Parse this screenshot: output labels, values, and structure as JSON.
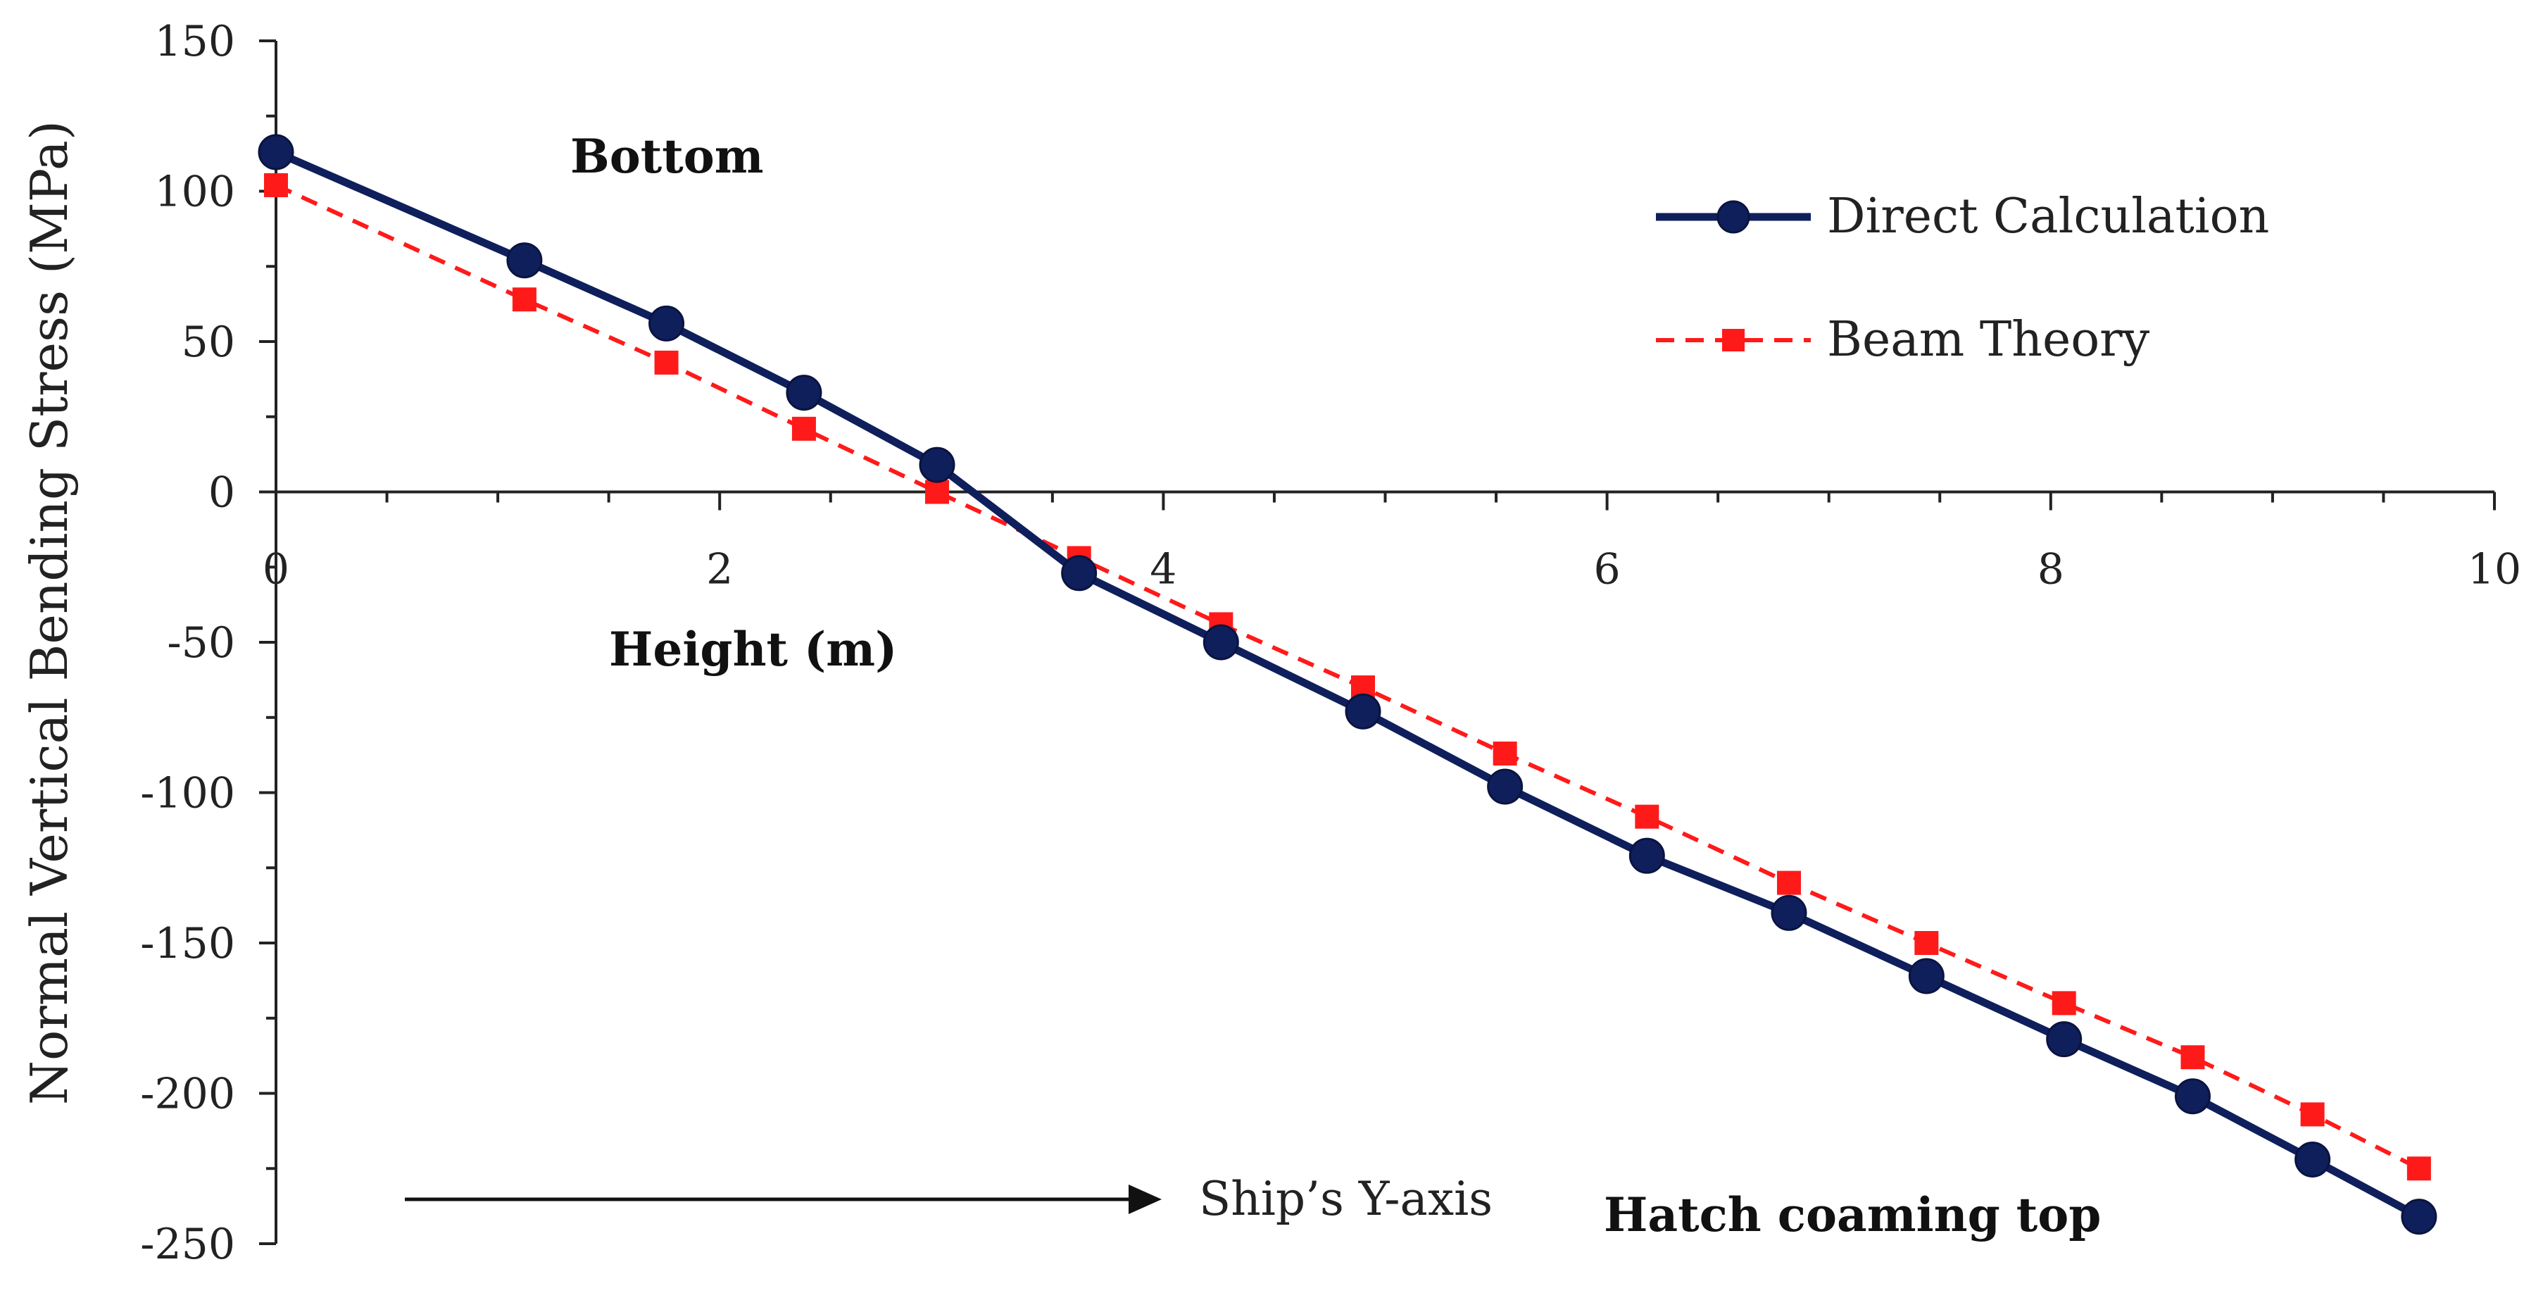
{
  "chart_data": {
    "type": "line",
    "title": "",
    "xlabel": "Height (m)",
    "ylabel": "Normal Vertical Bending Stress (MPa)",
    "xlim": [
      0,
      10
    ],
    "ylim": [
      -250,
      150
    ],
    "xticks": [
      0,
      2,
      4,
      6,
      8,
      10
    ],
    "yticks": [
      150,
      100,
      50,
      0,
      -50,
      -100,
      -150,
      -200,
      -250
    ],
    "grid": false,
    "legend_position": "top-right",
    "colors": {
      "direct": "#0f1f5c",
      "beam": "#ff1a1a"
    },
    "series": [
      {
        "name": "Direct Calculation",
        "style": "solid-circle",
        "points": [
          [
            0,
            113
          ],
          [
            1.12,
            77
          ],
          [
            1.76,
            56
          ],
          [
            2.38,
            33
          ],
          [
            2.98,
            9
          ],
          [
            3.62,
            -27
          ],
          [
            4.26,
            -50
          ],
          [
            4.9,
            -73
          ],
          [
            5.54,
            -98
          ],
          [
            6.18,
            -121
          ],
          [
            6.82,
            -140
          ],
          [
            7.44,
            -161
          ],
          [
            8.06,
            -182
          ],
          [
            8.64,
            -201
          ],
          [
            9.18,
            -222
          ],
          [
            9.66,
            -241
          ]
        ]
      },
      {
        "name": "Beam Theory",
        "style": "dashed-square",
        "points": [
          [
            0,
            102
          ],
          [
            1.12,
            64
          ],
          [
            1.76,
            43
          ],
          [
            2.38,
            21
          ],
          [
            2.98,
            0
          ],
          [
            3.62,
            -22
          ],
          [
            4.26,
            -44
          ],
          [
            4.9,
            -65
          ],
          [
            5.54,
            -87
          ],
          [
            6.18,
            -108
          ],
          [
            6.82,
            -130
          ],
          [
            7.44,
            -150
          ],
          [
            8.06,
            -170
          ],
          [
            8.64,
            -188
          ],
          [
            9.18,
            -207
          ],
          [
            9.66,
            -225
          ]
        ]
      }
    ],
    "annotations": {
      "bottom": "Bottom",
      "height_label": "Height (m)",
      "ship_axis": "Ship’s Y-axis",
      "hatch": "Hatch coaming top"
    }
  }
}
